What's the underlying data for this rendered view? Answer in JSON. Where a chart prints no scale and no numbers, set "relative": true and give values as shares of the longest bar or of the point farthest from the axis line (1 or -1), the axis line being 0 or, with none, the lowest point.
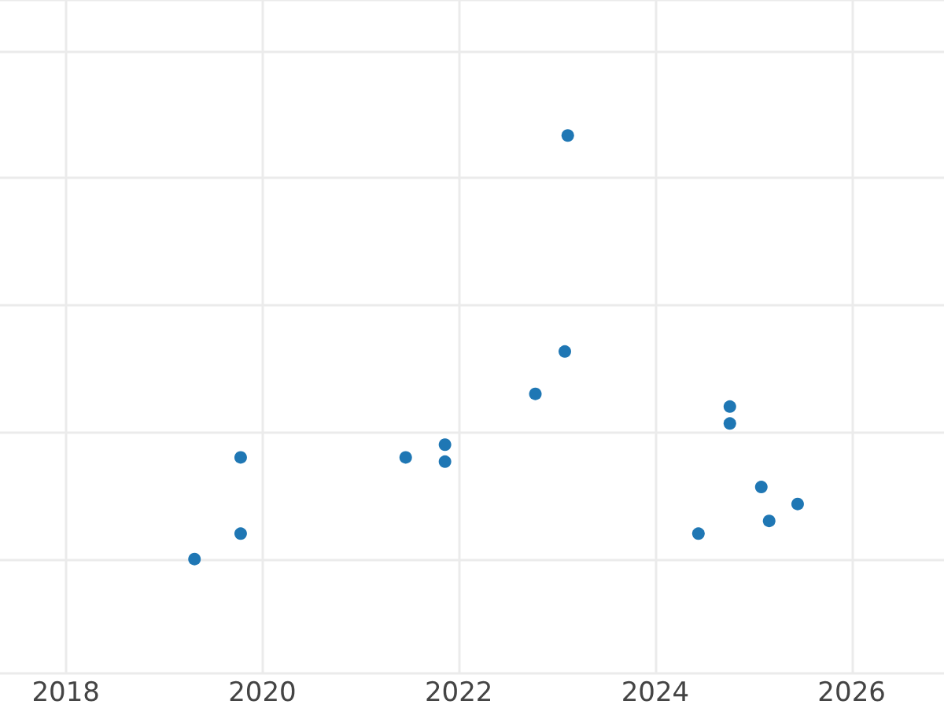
{
  "chart_data": {
    "type": "scatter",
    "relative": true,
    "marker": "circle",
    "grid": true,
    "xlim": [
      2017.33,
      2026.94
    ],
    "xticks": [
      2018,
      2020,
      2022,
      2024,
      2026
    ],
    "tick_labels": "x",
    "x": [
      2019.31,
      2019.78,
      2019.78,
      2021.46,
      2021.86,
      2021.86,
      2022.78,
      2023.08,
      2023.11,
      2024.44,
      2024.76,
      2024.76,
      2025.08,
      2025.16,
      2025.45
    ],
    "series": [
      {
        "color": "#1f77b4",
        "values": [
          0,
          0.24,
          0.06,
          0.24,
          0.27,
          0.23,
          0.39,
          0.49,
          1,
          0.06,
          0.36,
          0.32,
          0.17,
          0.09,
          0.13
        ]
      }
    ]
  }
}
